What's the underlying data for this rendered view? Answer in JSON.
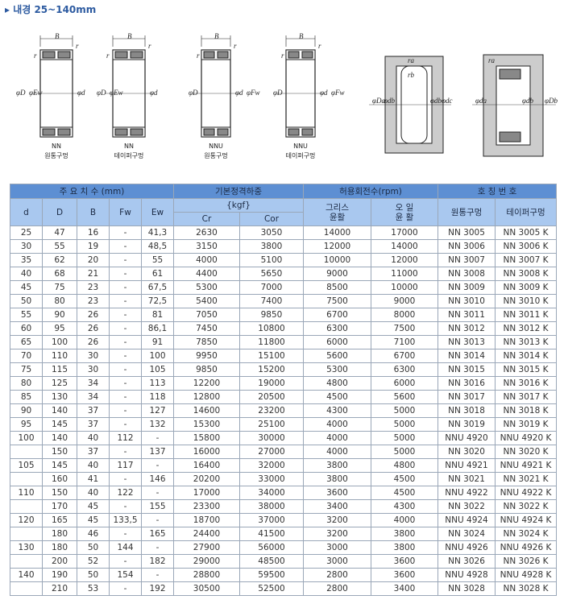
{
  "header": {
    "title": "▸ 내경 25~140mm"
  },
  "figures": [
    {
      "type": "NN",
      "caption": "원통구멍",
      "symbols": [
        "B",
        "r",
        "r",
        "φD",
        "φEw",
        "φd"
      ]
    },
    {
      "type": "NN",
      "caption": "테이퍼구멍",
      "symbols": [
        "B",
        "r",
        "r",
        "φD",
        "φEw",
        "φd"
      ]
    },
    {
      "type": "NNU",
      "caption": "원통구멍",
      "symbols": [
        "B",
        "r",
        "r",
        "φD",
        "φd",
        "φFw"
      ]
    },
    {
      "type": "NNU",
      "caption": "테이퍼구멍",
      "symbols": [
        "B",
        "r",
        "r",
        "φD",
        "φd",
        "φFw"
      ]
    },
    {
      "symbols": [
        "ra",
        "rb",
        "φDa",
        "φdb",
        "φdb",
        "φdc"
      ]
    },
    {
      "symbols": [
        "ra",
        "φda",
        "φdb",
        "φDb"
      ]
    }
  ],
  "table": {
    "groups": [
      "주 요 치 수 (mm)",
      "기본정격하중",
      "허용회전수(rpm)",
      "호 칭 번 호"
    ],
    "columns": [
      "d",
      "D",
      "B",
      "Fw",
      "Ew"
    ],
    "load_unit": "{kgf}",
    "load_columns": [
      "Cr",
      "Cor"
    ],
    "speed_columns": [
      "그리스\n윤활",
      "오 일\n윤 활"
    ],
    "number_columns": [
      "원통구멍",
      "테이퍼구멍"
    ],
    "rows": [
      [
        25,
        47,
        16,
        "-",
        "41,3",
        2630,
        3050,
        14000,
        17000,
        "NN 3005",
        "NN 3005 K"
      ],
      [
        30,
        55,
        19,
        "-",
        "48,5",
        3150,
        3800,
        12000,
        14000,
        "NN 3006",
        "NN 3006 K"
      ],
      [
        35,
        62,
        20,
        "-",
        55,
        4000,
        5100,
        10000,
        12000,
        "NN 3007",
        "NN 3007 K"
      ],
      [
        40,
        68,
        21,
        "-",
        61,
        4400,
        5650,
        9000,
        11000,
        "NN 3008",
        "NN 3008 K"
      ],
      [
        45,
        75,
        23,
        "-",
        "67,5",
        5300,
        7000,
        8500,
        10000,
        "NN 3009",
        "NN 3009 K"
      ],
      [
        50,
        80,
        23,
        "-",
        "72,5",
        5400,
        7400,
        7500,
        9000,
        "NN 3010",
        "NN 3010 K"
      ],
      [
        55,
        90,
        26,
        "-",
        81,
        7050,
        9850,
        6700,
        8000,
        "NN 3011",
        "NN 3011 K"
      ],
      [
        60,
        95,
        26,
        "-",
        "86,1",
        7450,
        10800,
        6300,
        7500,
        "NN 3012",
        "NN 3012 K"
      ],
      [
        65,
        100,
        26,
        "-",
        91,
        7850,
        11800,
        6000,
        7100,
        "NN 3013",
        "NN 3013 K"
      ],
      [
        70,
        110,
        30,
        "-",
        100,
        9950,
        15100,
        5600,
        6700,
        "NN 3014",
        "NN 3014 K"
      ],
      [
        75,
        115,
        30,
        "-",
        105,
        9850,
        15200,
        5300,
        6300,
        "NN 3015",
        "NN 3015 K"
      ],
      [
        80,
        125,
        34,
        "-",
        113,
        12200,
        19000,
        4800,
        6000,
        "NN 3016",
        "NN 3016 K"
      ],
      [
        85,
        130,
        34,
        "-",
        118,
        12800,
        20500,
        4500,
        5600,
        "NN 3017",
        "NN 3017 K"
      ],
      [
        90,
        140,
        37,
        "-",
        127,
        14600,
        23200,
        4300,
        5000,
        "NN 3018",
        "NN 3018 K"
      ],
      [
        95,
        145,
        37,
        "-",
        132,
        15300,
        25100,
        4000,
        5000,
        "NN 3019",
        "NN 3019 K"
      ],
      [
        100,
        140,
        40,
        112,
        "-",
        15800,
        30000,
        4000,
        5000,
        "NNU 4920",
        "NNU 4920 K"
      ],
      [
        null,
        150,
        37,
        "-",
        137,
        16000,
        27000,
        4000,
        5000,
        "NN 3020",
        "NN 3020 K"
      ],
      [
        105,
        145,
        40,
        117,
        "-",
        16400,
        32000,
        3800,
        4800,
        "NNU 4921",
        "NNU 4921 K"
      ],
      [
        null,
        160,
        41,
        "-",
        146,
        20200,
        33000,
        3800,
        4500,
        "NN 3021",
        "NN 3021 K"
      ],
      [
        110,
        150,
        40,
        122,
        "-",
        17000,
        34000,
        3600,
        4500,
        "NNU 4922",
        "NNU 4922 K"
      ],
      [
        null,
        170,
        45,
        "-",
        155,
        23300,
        38000,
        3400,
        4300,
        "NN 3022",
        "NN 3022 K"
      ],
      [
        120,
        165,
        45,
        "133,5",
        "-",
        18700,
        37000,
        3200,
        4000,
        "NNU 4924",
        "NNU 4924 K"
      ],
      [
        null,
        180,
        46,
        "-",
        165,
        24400,
        41500,
        3200,
        3800,
        "NN 3024",
        "NN 3024 K"
      ],
      [
        130,
        180,
        50,
        144,
        "-",
        27900,
        56000,
        3000,
        3800,
        "NNU 4926",
        "NNU 4926 K"
      ],
      [
        null,
        200,
        52,
        "-",
        182,
        29000,
        48500,
        3000,
        3600,
        "NN 3026",
        "NN 3026 K"
      ],
      [
        140,
        190,
        50,
        154,
        "-",
        28800,
        59500,
        2800,
        3600,
        "NNU 4928",
        "NNU 4928 K"
      ],
      [
        null,
        210,
        53,
        "-",
        192,
        30500,
        52500,
        2800,
        3400,
        "NN 3028",
        "NN 3028 K"
      ]
    ]
  }
}
